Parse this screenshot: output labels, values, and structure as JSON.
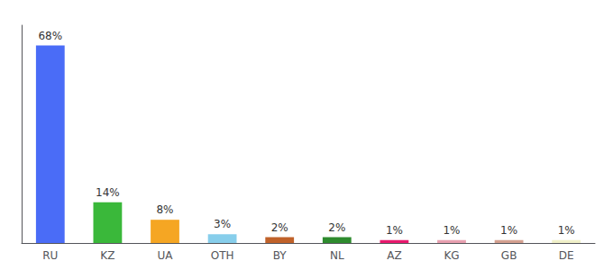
{
  "chart_data": {
    "type": "bar",
    "categories": [
      "RU",
      "KZ",
      "UA",
      "OTH",
      "BY",
      "NL",
      "AZ",
      "KG",
      "GB",
      "DE"
    ],
    "values": [
      68,
      14,
      8,
      3,
      2,
      2,
      1,
      1,
      1,
      1
    ],
    "value_labels": [
      "68%",
      "14%",
      "8%",
      "3%",
      "2%",
      "2%",
      "1%",
      "1%",
      "1%",
      "1%"
    ],
    "colors": [
      "#4a6cf7",
      "#3ab83a",
      "#f5a623",
      "#87ceeb",
      "#c0622a",
      "#2e8b2e",
      "#e8196e",
      "#e8a0b0",
      "#d4a090",
      "#f0f0c8"
    ],
    "ylim": [
      0,
      75
    ],
    "data_labels": true,
    "tick_labels": "x",
    "grid": false
  }
}
